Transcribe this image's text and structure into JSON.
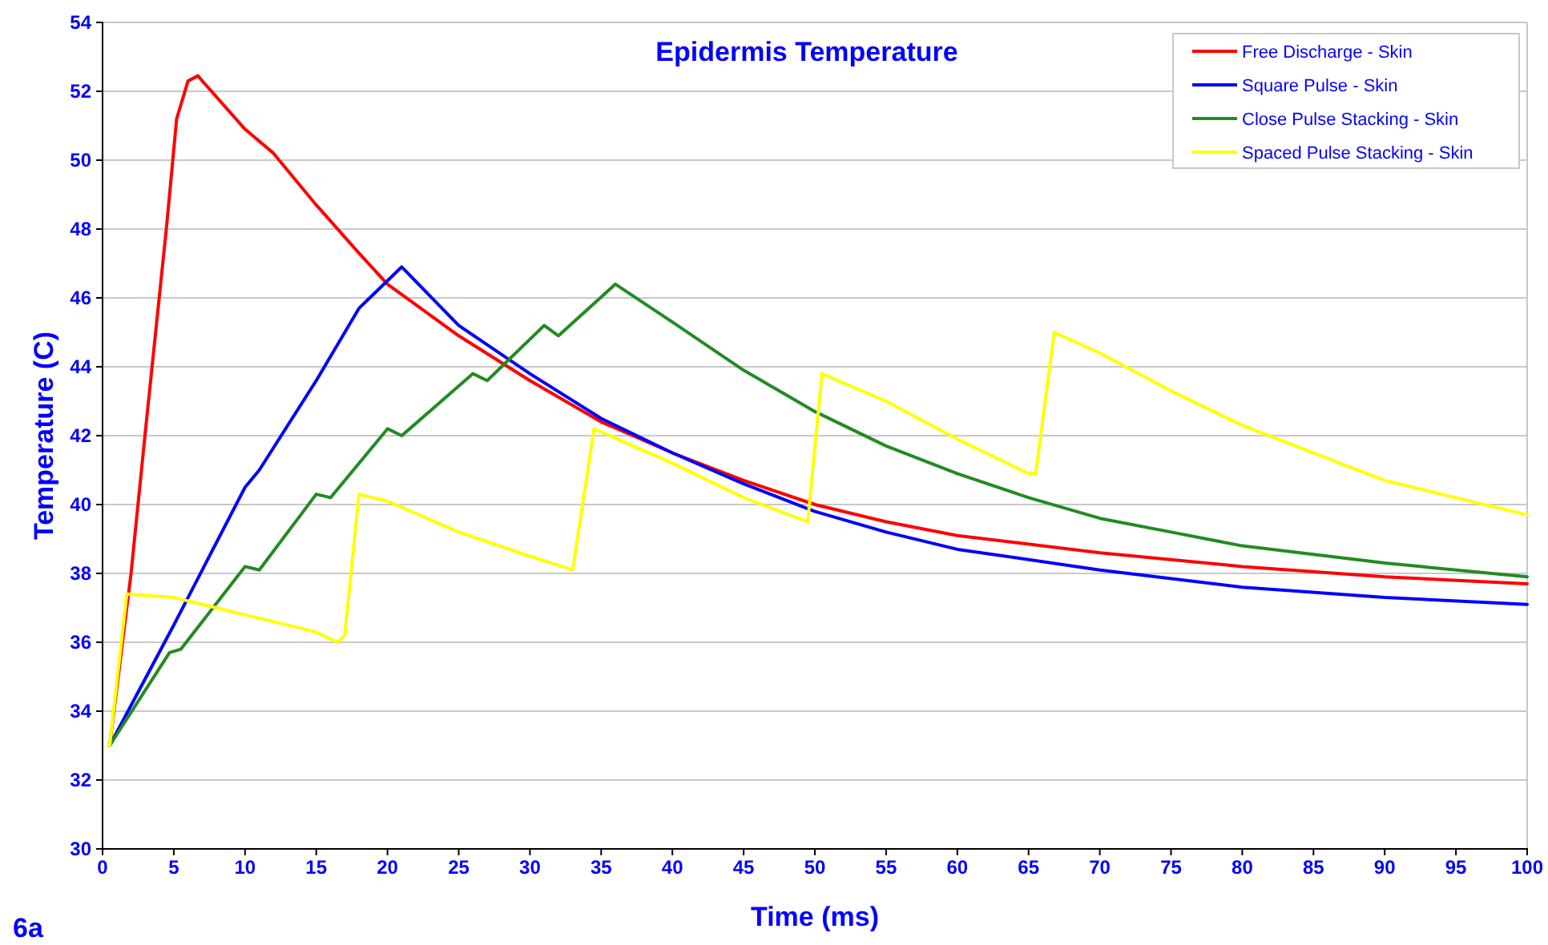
{
  "chart_data": {
    "type": "line",
    "title": "Epidermis Temperature",
    "xlabel": "Time (ms)",
    "ylabel": "Temperature (C)",
    "annotations": [
      "6a"
    ],
    "xlim": [
      0,
      100
    ],
    "xticks": [
      0,
      5,
      10,
      15,
      20,
      25,
      30,
      35,
      40,
      45,
      50,
      55,
      60,
      65,
      70,
      75,
      80,
      85,
      90,
      95,
      100
    ],
    "ylim": [
      30,
      54
    ],
    "yticks": [
      30,
      32,
      34,
      36,
      38,
      40,
      42,
      44,
      46,
      48,
      50,
      52,
      54
    ],
    "grid": "y",
    "legend": "top right",
    "marker": "none",
    "line_style": "solid",
    "series": [
      {
        "name": "Free Discharge - Skin",
        "color": "#ff0000",
        "x": [
          0.5,
          2,
          3,
          4.5,
          5.2,
          6,
          6.7,
          7,
          10,
          12,
          15,
          18,
          20,
          25,
          30,
          35,
          40,
          45,
          50,
          55,
          60,
          70,
          80,
          90,
          100
        ],
        "values": [
          33,
          38,
          42.1,
          48.1,
          51.2,
          52.3,
          52.45,
          52.3,
          50.9,
          50.2,
          48.7,
          47.3,
          46.4,
          44.9,
          43.6,
          42.4,
          41.5,
          40.7,
          40,
          39.5,
          39.1,
          38.6,
          38.2,
          37.9,
          37.7
        ]
      },
      {
        "name": "Square Pulse - Skin",
        "color": "#0000ff",
        "x": [
          0.5,
          5,
          6,
          10,
          11,
          15,
          18,
          19,
          21,
          25,
          30,
          35,
          40,
          45,
          50,
          55,
          60,
          70,
          80,
          90,
          100
        ],
        "values": [
          33,
          36.5,
          37.3,
          40.5,
          41,
          43.6,
          45.7,
          46.1,
          46.9,
          45.2,
          43.8,
          42.5,
          41.5,
          40.6,
          39.8,
          39.2,
          38.7,
          38.1,
          37.6,
          37.3,
          37.1
        ]
      },
      {
        "name": "Close Pulse Stacking - Skin",
        "color": "#228b22",
        "x": [
          0.5,
          4.7,
          5.5,
          10,
          11,
          15,
          16,
          20,
          21,
          26,
          27,
          31,
          32,
          36,
          40,
          45,
          50,
          55,
          60,
          65,
          70,
          75,
          80,
          90,
          100
        ],
        "values": [
          33,
          35.7,
          35.8,
          38.2,
          38.1,
          40.3,
          40.2,
          42.2,
          42,
          43.8,
          43.6,
          45.2,
          44.9,
          46.4,
          45.3,
          43.9,
          42.7,
          41.7,
          40.9,
          40.2,
          39.6,
          39.2,
          38.8,
          38.3,
          37.9
        ]
      },
      {
        "name": "Spaced Pulse Stacking - Skin",
        "color": "#ffff00",
        "x": [
          0.5,
          1.7,
          5,
          10,
          15,
          16.5,
          17,
          18,
          20,
          25,
          30,
          33,
          34.5,
          40,
          45,
          49.5,
          50.5,
          55,
          60,
          65,
          65.5,
          66.8,
          70,
          75,
          80,
          90,
          100
        ],
        "values": [
          33,
          37.4,
          37.3,
          36.8,
          36.3,
          36,
          36.2,
          40.3,
          40.1,
          39.2,
          38.5,
          38.1,
          42.2,
          41.2,
          40.2,
          39.5,
          43.8,
          43,
          41.9,
          40.9,
          40.9,
          45,
          44.4,
          43.3,
          42.3,
          40.7,
          39.7
        ]
      }
    ]
  }
}
